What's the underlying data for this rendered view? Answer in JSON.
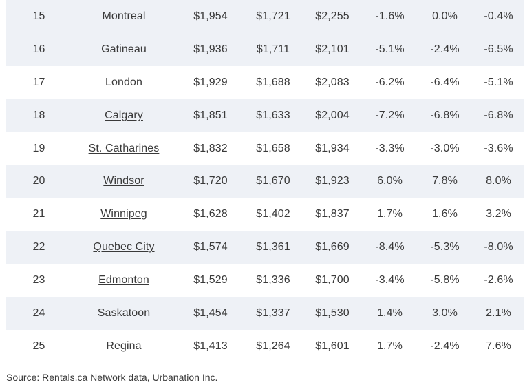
{
  "rows": [
    {
      "rank": "15",
      "city": "Montreal",
      "v1": "$1,954",
      "v2": "$1,721",
      "v3": "$2,255",
      "p1": "-1.6%",
      "p2": "0.0%",
      "p3": "-0.4%"
    },
    {
      "rank": "16",
      "city": "Gatineau",
      "v1": "$1,936",
      "v2": "$1,711",
      "v3": "$2,101",
      "p1": "-5.1%",
      "p2": "-2.4%",
      "p3": "-6.5%"
    },
    {
      "rank": "17",
      "city": "London",
      "v1": "$1,929",
      "v2": "$1,688",
      "v3": "$2,083",
      "p1": "-6.2%",
      "p2": "-6.4%",
      "p3": "-5.1%"
    },
    {
      "rank": "18",
      "city": "Calgary",
      "v1": "$1,851",
      "v2": "$1,633",
      "v3": "$2,004",
      "p1": "-7.2%",
      "p2": "-6.8%",
      "p3": "-6.8%"
    },
    {
      "rank": "19",
      "city": "St. Catharines",
      "v1": "$1,832",
      "v2": "$1,658",
      "v3": "$1,934",
      "p1": "-3.3%",
      "p2": "-3.0%",
      "p3": "-3.6%"
    },
    {
      "rank": "20",
      "city": "Windsor",
      "v1": "$1,720",
      "v2": "$1,670",
      "v3": "$1,923",
      "p1": "6.0%",
      "p2": "7.8%",
      "p3": "8.0%"
    },
    {
      "rank": "21",
      "city": "Winnipeg",
      "v1": "$1,628",
      "v2": "$1,402",
      "v3": "$1,837",
      "p1": "1.7%",
      "p2": "1.6%",
      "p3": "3.2%"
    },
    {
      "rank": "22",
      "city": "Quebec City",
      "v1": "$1,574",
      "v2": "$1,361",
      "v3": "$1,669",
      "p1": "-8.4%",
      "p2": "-5.3%",
      "p3": "-8.0%"
    },
    {
      "rank": "23",
      "city": "Edmonton",
      "v1": "$1,529",
      "v2": "$1,336",
      "v3": "$1,700",
      "p1": "-3.4%",
      "p2": "-5.8%",
      "p3": "-2.6%"
    },
    {
      "rank": "24",
      "city": "Saskatoon",
      "v1": "$1,454",
      "v2": "$1,337",
      "v3": "$1,530",
      "p1": "1.4%",
      "p2": "3.0%",
      "p3": "2.1%"
    },
    {
      "rank": "25",
      "city": "Regina",
      "v1": "$1,413",
      "v2": "$1,264",
      "v3": "$1,601",
      "p1": "1.7%",
      "p2": "-2.4%",
      "p3": "7.6%"
    }
  ],
  "source": {
    "prefix": "Source: ",
    "link1": "Rentals.ca Network data",
    "separator": ", ",
    "link2": "Urbanation Inc."
  },
  "colors": {
    "row_shade": "#eef1f6",
    "text": "#3a3a3a"
  }
}
